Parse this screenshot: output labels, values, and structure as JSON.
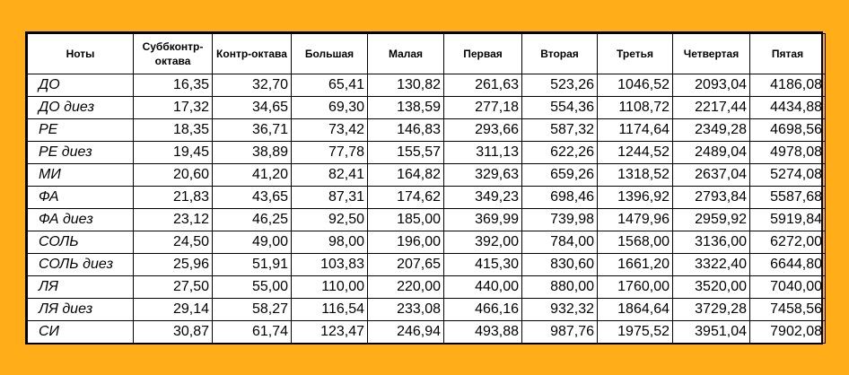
{
  "table": {
    "headers": [
      "Ноты",
      "Суббконтр-октава",
      "Контр-октава",
      "Большая",
      "Малая",
      "Первая",
      "Вторая",
      "Третья",
      "Четвертая",
      "Пятая"
    ],
    "rows": [
      [
        "ДО",
        "16,35",
        "32,70",
        "65,41",
        "130,82",
        "261,63",
        "523,26",
        "1046,52",
        "2093,04",
        "4186,08"
      ],
      [
        "ДО диез",
        "17,32",
        "34,65",
        "69,30",
        "138,59",
        "277,18",
        "554,36",
        "1108,72",
        "2217,44",
        "4434,88"
      ],
      [
        "РЕ",
        "18,35",
        "36,71",
        "73,42",
        "146,83",
        "293,66",
        "587,32",
        "1174,64",
        "2349,28",
        "4698,56"
      ],
      [
        "РЕ диез",
        "19,45",
        "38,89",
        "77,78",
        "155,57",
        "311,13",
        "622,26",
        "1244,52",
        "2489,04",
        "4978,08"
      ],
      [
        "МИ",
        "20,60",
        "41,20",
        "82,41",
        "164,82",
        "329,63",
        "659,26",
        "1318,52",
        "2637,04",
        "5274,08"
      ],
      [
        "ФА",
        "21,83",
        "43,65",
        "87,31",
        "174,62",
        "349,23",
        "698,46",
        "1396,92",
        "2793,84",
        "5587,68"
      ],
      [
        "ФА диез",
        "23,12",
        "46,25",
        "92,50",
        "185,00",
        "369,99",
        "739,98",
        "1479,96",
        "2959,92",
        "5919,84"
      ],
      [
        "СОЛЬ",
        "24,50",
        "49,00",
        "98,00",
        "196,00",
        "392,00",
        "784,00",
        "1568,00",
        "3136,00",
        "6272,00"
      ],
      [
        "СОЛЬ диез",
        "25,96",
        "51,91",
        "103,83",
        "207,65",
        "415,30",
        "830,60",
        "1661,20",
        "3322,40",
        "6644,80"
      ],
      [
        "ЛЯ",
        "27,50",
        "55,00",
        "110,00",
        "220,00",
        "440,00",
        "880,00",
        "1760,00",
        "3520,00",
        "7040,00"
      ],
      [
        "ЛЯ диез",
        "29,14",
        "58,27",
        "116,54",
        "233,08",
        "466,16",
        "932,32",
        "1864,64",
        "3729,28",
        "7458,56"
      ],
      [
        "СИ",
        "30,87",
        "61,74",
        "123,47",
        "246,94",
        "493,88",
        "987,76",
        "1975,52",
        "3951,04",
        "7902,08"
      ]
    ]
  }
}
